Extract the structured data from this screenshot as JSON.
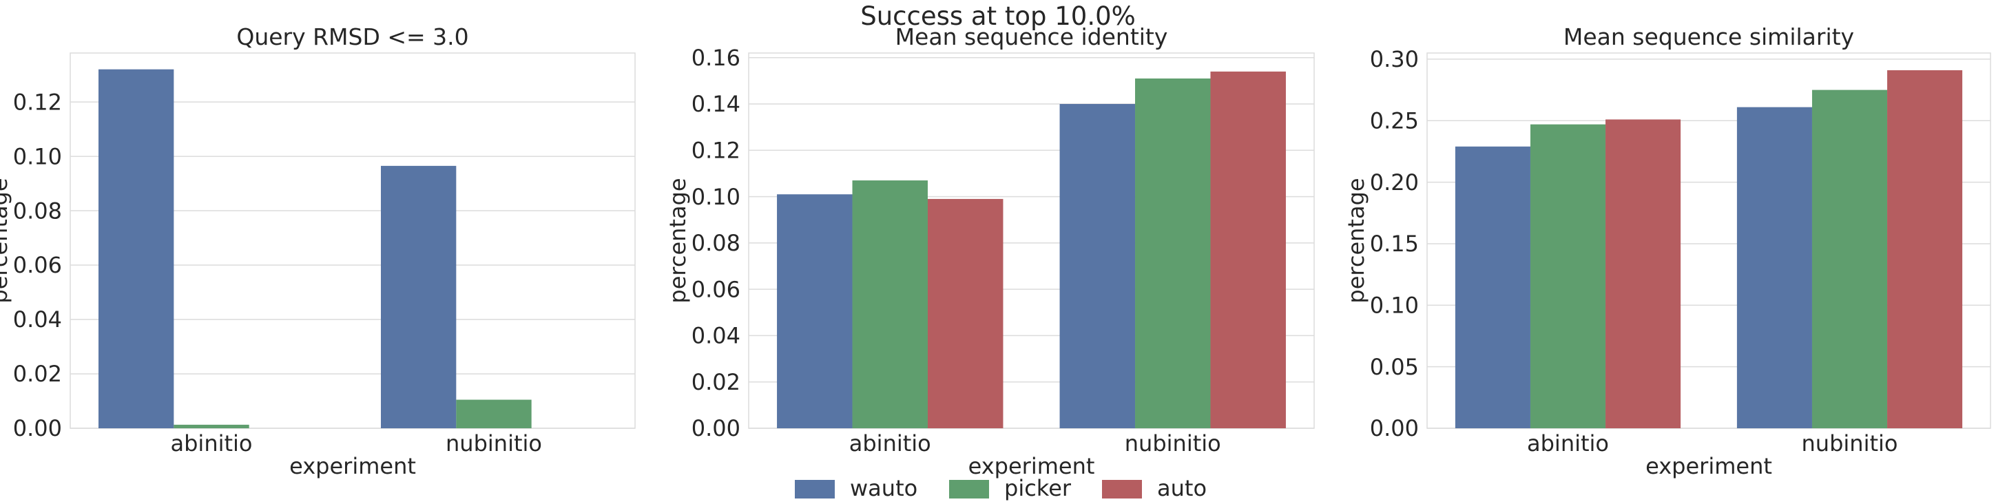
{
  "figure": {
    "suptitle": "Success at top 10.0%"
  },
  "legend": {
    "placement": "bottom-center",
    "entries": [
      {
        "name": "wauto",
        "color": "#5875a4"
      },
      {
        "name": "picker",
        "color": "#5f9e6e"
      },
      {
        "name": "auto",
        "color": "#b55d60"
      }
    ]
  },
  "chart_data": [
    {
      "type": "bar",
      "title": "Query RMSD <= 3.0",
      "xlabel": "experiment",
      "ylabel": "percentage",
      "categories": [
        "abinitio",
        "nubinitio"
      ],
      "ylim": [
        0,
        0.138
      ],
      "yticks": [
        0.0,
        0.02,
        0.04,
        0.06,
        0.08,
        0.1,
        0.12
      ],
      "ytick_labels": [
        "0.00",
        "0.02",
        "0.04",
        "0.06",
        "0.08",
        "0.10",
        "0.12"
      ],
      "grid": true,
      "series": [
        {
          "name": "wauto",
          "values": [
            0.132,
            0.0965
          ]
        },
        {
          "name": "picker",
          "values": [
            0.0013,
            0.0105
          ]
        },
        {
          "name": "auto",
          "values": [
            0,
            0
          ]
        }
      ]
    },
    {
      "type": "bar",
      "title": "Mean sequence identity",
      "xlabel": "experiment",
      "ylabel": "percentage",
      "categories": [
        "abinitio",
        "nubinitio"
      ],
      "ylim": [
        0,
        0.162
      ],
      "yticks": [
        0.0,
        0.02,
        0.04,
        0.06,
        0.08,
        0.1,
        0.12,
        0.14,
        0.16
      ],
      "ytick_labels": [
        "0.00",
        "0.02",
        "0.04",
        "0.06",
        "0.08",
        "0.10",
        "0.12",
        "0.14",
        "0.16"
      ],
      "grid": true,
      "series": [
        {
          "name": "wauto",
          "values": [
            0.101,
            0.14
          ]
        },
        {
          "name": "picker",
          "values": [
            0.107,
            0.151
          ]
        },
        {
          "name": "auto",
          "values": [
            0.099,
            0.154
          ]
        }
      ]
    },
    {
      "type": "bar",
      "title": "Mean sequence similarity",
      "xlabel": "experiment",
      "ylabel": "percentage",
      "categories": [
        "abinitio",
        "nubinitio"
      ],
      "ylim": [
        0,
        0.305
      ],
      "yticks": [
        0.0,
        0.05,
        0.1,
        0.15,
        0.2,
        0.25,
        0.3
      ],
      "ytick_labels": [
        "0.00",
        "0.05",
        "0.10",
        "0.15",
        "0.20",
        "0.25",
        "0.30"
      ],
      "grid": true,
      "series": [
        {
          "name": "wauto",
          "values": [
            0.229,
            0.261
          ]
        },
        {
          "name": "picker",
          "values": [
            0.247,
            0.275
          ]
        },
        {
          "name": "auto",
          "values": [
            0.251,
            0.291
          ]
        }
      ]
    }
  ]
}
